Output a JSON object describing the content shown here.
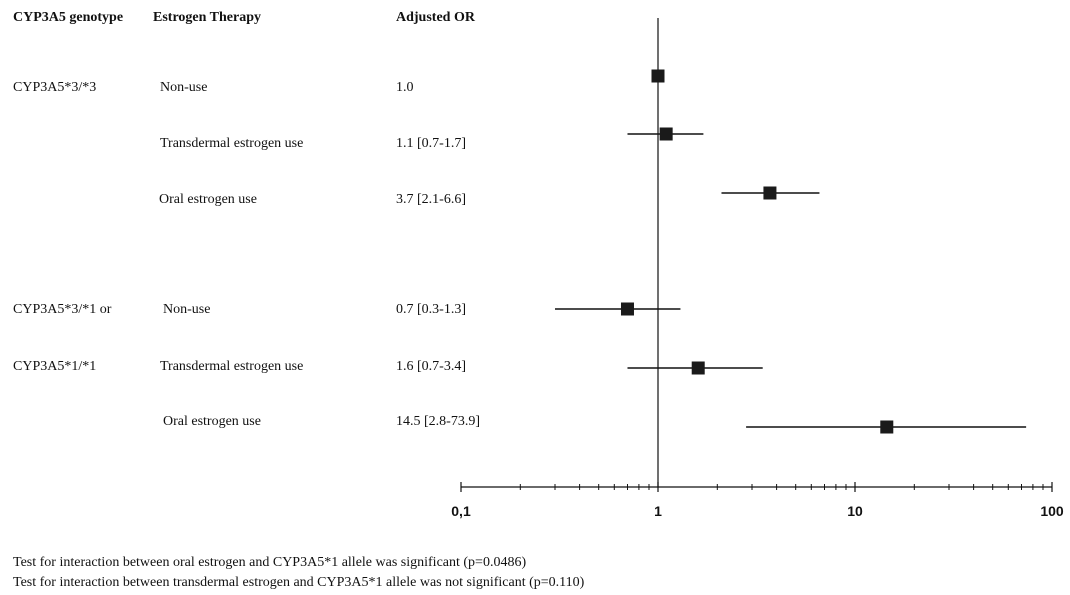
{
  "headers": {
    "genotype": "CYP3A5 genotype",
    "therapy": "Estrogen Therapy",
    "or": "Adjusted OR"
  },
  "genotypes": [
    {
      "line1": "CYP3A5*3/*3",
      "line2": ""
    },
    {
      "line1": "CYP3A5*3/*1 or",
      "line2": "CYP3A5*1/*1"
    }
  ],
  "footnotes": [
    "Test for interaction between oral estrogen and CYP3A5*1 allele was significant (p=0.0486)",
    "Test for interaction between transdermal estrogen and CYP3A5*1 allele was not significant (p=0.110)"
  ],
  "colors": {
    "marker": "#1a1a1a",
    "line": "#111111"
  },
  "chart_data": {
    "type": "forest",
    "x_scale": "log",
    "xlim": [
      0.1,
      100
    ],
    "x_tick_labels": [
      "0,1",
      "1",
      "10",
      "100"
    ],
    "x_tick_values": [
      0.1,
      1,
      10,
      100
    ],
    "reference_line": 1,
    "rows": [
      {
        "genotype_index": 0,
        "therapy": "Non-use",
        "or_text": "1.0",
        "or": 1.0,
        "ci": null
      },
      {
        "genotype_index": 0,
        "therapy": "Transdermal estrogen use",
        "or_text": "1.1 [0.7-1.7]",
        "or": 1.1,
        "ci": [
          0.7,
          1.7
        ]
      },
      {
        "genotype_index": 0,
        "therapy": "Oral estrogen use",
        "or_text": "3.7 [2.1-6.6]",
        "or": 3.7,
        "ci": [
          2.1,
          6.6
        ]
      },
      {
        "genotype_index": 1,
        "therapy": "Non-use",
        "or_text": "0.7 [0.3-1.3]",
        "or": 0.7,
        "ci": [
          0.3,
          1.3
        ]
      },
      {
        "genotype_index": 1,
        "therapy": "Transdermal estrogen use",
        "or_text": "1.6 [0.7-3.4]",
        "or": 1.6,
        "ci": [
          0.7,
          3.4
        ]
      },
      {
        "genotype_index": 1,
        "therapy": "Oral estrogen use",
        "or_text": "14.5 [2.8-73.9]",
        "or": 14.5,
        "ci": [
          2.8,
          73.9
        ]
      }
    ]
  }
}
